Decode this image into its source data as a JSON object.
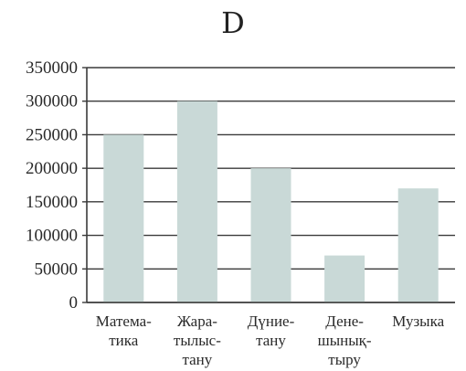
{
  "chart_data": {
    "type": "bar",
    "title": "D",
    "categories": [
      [
        "Матема-",
        "тика"
      ],
      [
        "Жара-",
        "тылыс-",
        "тану"
      ],
      [
        "Дүние-",
        "тану"
      ],
      [
        "Дене-",
        "шынық-",
        "тыру"
      ],
      [
        "Музыка"
      ]
    ],
    "values": [
      250000,
      300000,
      200000,
      70000,
      170000
    ],
    "yticks": [
      "0",
      "50000",
      "100000",
      "150000",
      "200000",
      "250000",
      "300000",
      "350000"
    ],
    "ylim": [
      0,
      350000
    ],
    "grid": true,
    "colors": {
      "bar": "#c9d9d7",
      "axis": "#3a3a3a",
      "grid": "#3a3a3a"
    }
  }
}
